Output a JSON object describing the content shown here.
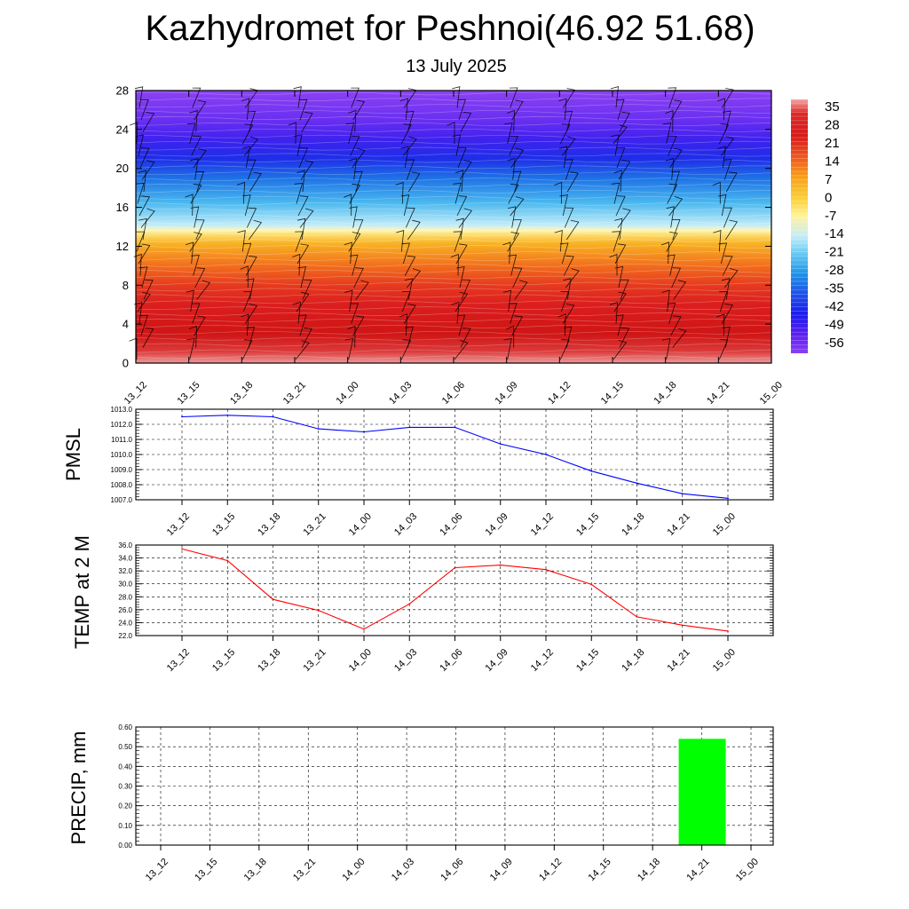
{
  "header": {
    "title": "Kazhydromet for Peshnoi(46.92 51.68)",
    "subtitle": "13 July 2025"
  },
  "chart_data": [
    {
      "type": "heatmap",
      "name": "height-time cross section",
      "y_ticks": [
        "0",
        "4",
        "8",
        "12",
        "16",
        "20",
        "24",
        "28"
      ],
      "ylim": [
        0,
        28
      ],
      "x_ticks": [
        "13_12",
        "13_15",
        "13_18",
        "13_21",
        "14_00",
        "14_03",
        "14_06",
        "14_09",
        "14_12",
        "14_15",
        "14_18",
        "14_21",
        "15_00"
      ],
      "colorbar_labels": [
        "35",
        "28",
        "21",
        "14",
        "7",
        "0",
        "-7",
        "-14",
        "-21",
        "-28",
        "-35",
        "-42",
        "-49",
        "-56"
      ],
      "colorbar_stops": [
        {
          "level": 35,
          "color": "#f2a6a6"
        },
        {
          "level": 30,
          "color": "#dc2828"
        },
        {
          "level": 22,
          "color": "#d61a1a"
        },
        {
          "level": 14,
          "color": "#ee5a1e"
        },
        {
          "level": 7,
          "color": "#f7a11a"
        },
        {
          "level": 0,
          "color": "#fbcd30"
        },
        {
          "level": -7,
          "color": "#fff3a0"
        },
        {
          "level": -14,
          "color": "#c5ecf7"
        },
        {
          "level": -21,
          "color": "#5cc6f2"
        },
        {
          "level": -28,
          "color": "#1e8ee6"
        },
        {
          "level": -35,
          "color": "#1f4fe8"
        },
        {
          "level": -42,
          "color": "#1a1aee"
        },
        {
          "level": -49,
          "color": "#5a1ff0"
        },
        {
          "level": -56,
          "color": "#8a3ff3"
        }
      ],
      "field_profile": [
        {
          "y": 0,
          "color": "#ee9a9a"
        },
        {
          "y": 1.2,
          "color": "#dc3a3a"
        },
        {
          "y": 3,
          "color": "#cf1515"
        },
        {
          "y": 6,
          "color": "#db1e1e"
        },
        {
          "y": 8,
          "color": "#e63a1f"
        },
        {
          "y": 10,
          "color": "#f26e1c"
        },
        {
          "y": 12.3,
          "color": "#f8b324"
        },
        {
          "y": 13.3,
          "color": "#fde27a"
        },
        {
          "y": 13.6,
          "color": "#fff6b5"
        },
        {
          "y": 14.2,
          "color": "#c2ecf8"
        },
        {
          "y": 16.5,
          "color": "#49b8ef"
        },
        {
          "y": 19,
          "color": "#1e72e6"
        },
        {
          "y": 21,
          "color": "#1e2ee8"
        },
        {
          "y": 23,
          "color": "#3f22ee"
        },
        {
          "y": 25,
          "color": "#6a2ff1"
        },
        {
          "y": 28,
          "color": "#8c42f3"
        }
      ]
    },
    {
      "type": "line",
      "ylabel": "PMSL",
      "categories": [
        "13_12",
        "13_15",
        "13_18",
        "13_21",
        "14_00",
        "14_03",
        "14_06",
        "14_09",
        "14_12",
        "14_15",
        "14_18",
        "14_21",
        "15_00"
      ],
      "y_ticks": [
        "1007.0",
        "1008.0",
        "1009.0",
        "1010.0",
        "1011.0",
        "1012.0",
        "1013.0"
      ],
      "ylim": [
        1007.0,
        1013.0
      ],
      "series": [
        {
          "color": "#0000ff",
          "values": [
            1012.5,
            1012.6,
            1012.5,
            1011.7,
            1011.5,
            1011.8,
            1011.8,
            1010.7,
            1010.0,
            1008.9,
            1008.1,
            1007.4,
            1007.1
          ]
        }
      ]
    },
    {
      "type": "line",
      "ylabel": "TEMP at 2 M",
      "categories": [
        "13_12",
        "13_15",
        "13_18",
        "13_21",
        "14_00",
        "14_03",
        "14_06",
        "14_09",
        "14_12",
        "14_15",
        "14_18",
        "14_21",
        "15_00"
      ],
      "y_ticks": [
        "22.0",
        "24.0",
        "26.0",
        "28.0",
        "30.0",
        "32.0",
        "34.0",
        "36.0"
      ],
      "ylim": [
        22.0,
        36.0
      ],
      "series": [
        {
          "color": "#ff0000",
          "values": [
            35.4,
            33.6,
            27.6,
            25.9,
            23.0,
            26.9,
            32.5,
            32.9,
            32.2,
            29.9,
            24.9,
            23.6,
            22.7
          ]
        }
      ]
    },
    {
      "type": "bar",
      "ylabel": "PRECIP, mm",
      "categories": [
        "13_12",
        "13_15",
        "13_18",
        "13_21",
        "14_00",
        "14_03",
        "14_06",
        "14_09",
        "14_12",
        "14_15",
        "14_18",
        "14_21",
        "15_00"
      ],
      "y_ticks": [
        "0.00",
        "0.10",
        "0.20",
        "0.30",
        "0.40",
        "0.50",
        "0.60"
      ],
      "ylim": [
        0.0,
        0.6
      ],
      "bar_color": "#00ff00",
      "values": [
        0,
        0,
        0,
        0,
        0,
        0,
        0,
        0,
        0,
        0,
        0,
        0.54,
        0
      ]
    }
  ]
}
